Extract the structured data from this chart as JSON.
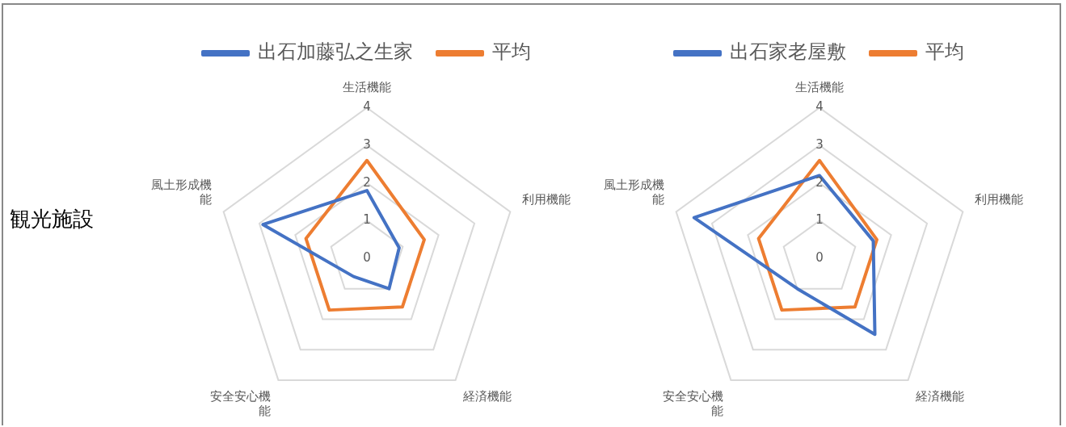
{
  "chart_data": [
    {
      "type": "radar",
      "categories": [
        "生活機能",
        "利用機能",
        "経済機能",
        "安全安心機能",
        "風土形成機能"
      ],
      "ylim": [
        0,
        4
      ],
      "yticks": [
        0,
        1,
        2,
        3,
        4
      ],
      "grid": true,
      "legend": "top",
      "marker": "none",
      "line_style": "solid",
      "annotations": [
        "観光施設"
      ],
      "series": [
        {
          "name": "出石加藤弘之生家",
          "color": "#4472c4",
          "values": [
            1.8,
            0.9,
            1.0,
            0.6,
            2.9
          ]
        },
        {
          "name": "平均",
          "color": "#ed7d31",
          "values": [
            2.6,
            1.6,
            1.6,
            1.7,
            1.7
          ]
        }
      ]
    },
    {
      "type": "radar",
      "categories": [
        "生活機能",
        "利用機能",
        "経済機能",
        "安全安心機能",
        "風土形成機能"
      ],
      "ylim": [
        0,
        4
      ],
      "yticks": [
        0,
        1,
        2,
        3,
        4
      ],
      "grid": true,
      "legend": "top",
      "marker": "none",
      "line_style": "solid",
      "series": [
        {
          "name": "出石家老屋敷",
          "color": "#4472c4",
          "values": [
            2.2,
            1.5,
            2.5,
            1.0,
            3.5
          ]
        },
        {
          "name": "平均",
          "color": "#ed7d31",
          "values": [
            2.6,
            1.6,
            1.6,
            1.7,
            1.7
          ]
        }
      ]
    }
  ]
}
